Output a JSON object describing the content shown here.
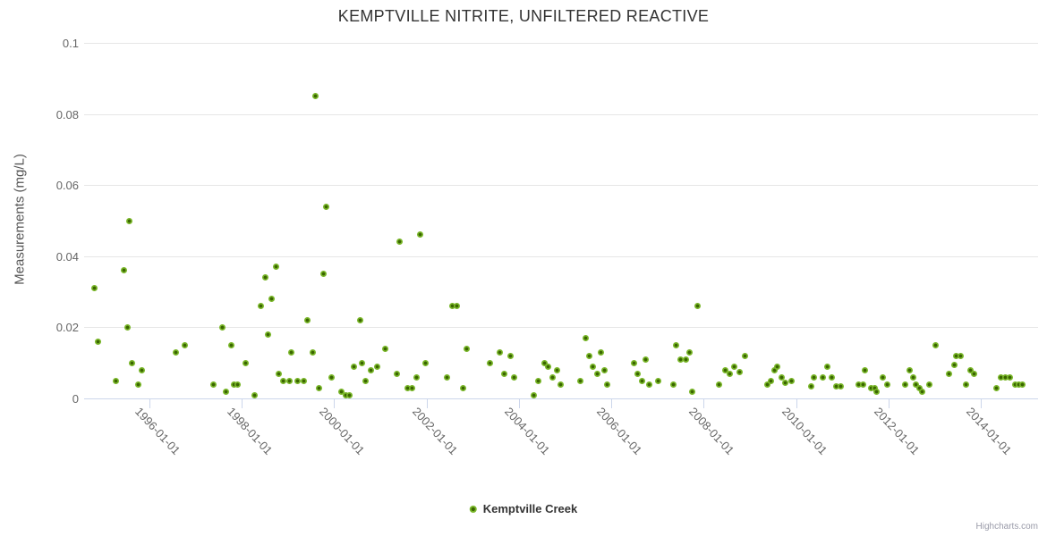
{
  "title": "KEMPTVILLE NITRITE, UNFILTERED REACTIVE",
  "legend": {
    "series_label": "Kemptville Creek"
  },
  "credits": "Highcharts.com",
  "colors": {
    "point_outer": "#79b629",
    "point_inner": "#3a6500",
    "grid": "#e6e6e6",
    "axis_line": "#ccd6eb",
    "title_text": "#333333",
    "axis_label_text": "#666666",
    "credits_text": "#999aa8"
  },
  "chart_data": {
    "type": "scatter",
    "title": "KEMPTVILLE NITRITE, UNFILTERED REACTIVE",
    "xlabel": "",
    "ylabel": "Measurements (mg/L)",
    "grid": true,
    "legend_position": "bottom-center",
    "x_range": [
      1994.585,
      2015.24
    ],
    "y_range": [
      0,
      0.1
    ],
    "y_ticks": [
      0,
      0.02,
      0.04,
      0.06,
      0.08,
      0.1
    ],
    "x_ticks": [
      {
        "value": 1996,
        "label": "1996-01-01"
      },
      {
        "value": 1998,
        "label": "1998-01-01"
      },
      {
        "value": 2000,
        "label": "2000-01-01"
      },
      {
        "value": 2002,
        "label": "2002-01-01"
      },
      {
        "value": 2004,
        "label": "2004-01-01"
      },
      {
        "value": 2006,
        "label": "2006-01-01"
      },
      {
        "value": 2008,
        "label": "2008-01-01"
      },
      {
        "value": 2010,
        "label": "2010-01-01"
      },
      {
        "value": 2012,
        "label": "2012-01-01"
      },
      {
        "value": 2014,
        "label": "2014-01-01"
      }
    ],
    "series": [
      {
        "name": "Kemptville Creek",
        "color": "#79b629",
        "points": [
          [
            1994.8,
            0.031
          ],
          [
            1994.88,
            0.016
          ],
          [
            1995.27,
            0.005
          ],
          [
            1995.44,
            0.036
          ],
          [
            1995.52,
            0.02
          ],
          [
            1995.56,
            0.05
          ],
          [
            1995.63,
            0.01
          ],
          [
            1995.75,
            0.004
          ],
          [
            1995.84,
            0.008
          ],
          [
            1996.58,
            0.013
          ],
          [
            1996.77,
            0.015
          ],
          [
            1997.39,
            0.004
          ],
          [
            1997.58,
            0.02
          ],
          [
            1997.66,
            0.002
          ],
          [
            1997.78,
            0.015
          ],
          [
            1997.83,
            0.004
          ],
          [
            1997.91,
            0.004
          ],
          [
            1998.08,
            0.01
          ],
          [
            1998.28,
            0.001
          ],
          [
            1998.41,
            0.026
          ],
          [
            1998.5,
            0.034
          ],
          [
            1998.57,
            0.018
          ],
          [
            1998.64,
            0.028
          ],
          [
            1998.74,
            0.037
          ],
          [
            1998.8,
            0.007
          ],
          [
            1998.9,
            0.005
          ],
          [
            1999.03,
            0.005
          ],
          [
            1999.07,
            0.013
          ],
          [
            1999.2,
            0.005
          ],
          [
            1999.34,
            0.005
          ],
          [
            1999.42,
            0.022
          ],
          [
            1999.53,
            0.013
          ],
          [
            1999.59,
            0.085
          ],
          [
            1999.67,
            0.003
          ],
          [
            1999.76,
            0.035
          ],
          [
            1999.82,
            0.054
          ],
          [
            1999.94,
            0.006
          ],
          [
            2000.15,
            0.002
          ],
          [
            2000.25,
            0.001
          ],
          [
            2000.33,
            0.001
          ],
          [
            2000.42,
            0.009
          ],
          [
            2000.56,
            0.022
          ],
          [
            2000.6,
            0.01
          ],
          [
            2000.67,
            0.005
          ],
          [
            2000.79,
            0.008
          ],
          [
            2000.94,
            0.009
          ],
          [
            2001.1,
            0.014
          ],
          [
            2001.35,
            0.007
          ],
          [
            2001.42,
            0.044
          ],
          [
            2001.58,
            0.003
          ],
          [
            2001.68,
            0.003
          ],
          [
            2001.79,
            0.006
          ],
          [
            2001.87,
            0.046
          ],
          [
            2001.97,
            0.01
          ],
          [
            2002.45,
            0.006
          ],
          [
            2002.56,
            0.026
          ],
          [
            2002.66,
            0.026
          ],
          [
            2002.8,
            0.003
          ],
          [
            2002.87,
            0.014
          ],
          [
            2003.37,
            0.01
          ],
          [
            2003.59,
            0.013
          ],
          [
            2003.68,
            0.007
          ],
          [
            2003.82,
            0.012
          ],
          [
            2003.9,
            0.006
          ],
          [
            2004.32,
            0.001
          ],
          [
            2004.42,
            0.005
          ],
          [
            2004.55,
            0.01
          ],
          [
            2004.63,
            0.009
          ],
          [
            2004.73,
            0.006
          ],
          [
            2004.82,
            0.008
          ],
          [
            2004.9,
            0.004
          ],
          [
            2005.32,
            0.005
          ],
          [
            2005.44,
            0.017
          ],
          [
            2005.52,
            0.012
          ],
          [
            2005.61,
            0.009
          ],
          [
            2005.69,
            0.007
          ],
          [
            2005.77,
            0.013
          ],
          [
            2005.85,
            0.008
          ],
          [
            2005.92,
            0.004
          ],
          [
            2006.5,
            0.01
          ],
          [
            2006.56,
            0.007
          ],
          [
            2006.66,
            0.005
          ],
          [
            2006.75,
            0.011
          ],
          [
            2006.83,
            0.004
          ],
          [
            2007.02,
            0.005
          ],
          [
            2007.35,
            0.004
          ],
          [
            2007.41,
            0.015
          ],
          [
            2007.5,
            0.011
          ],
          [
            2007.62,
            0.011
          ],
          [
            2007.7,
            0.013
          ],
          [
            2007.76,
            0.002
          ],
          [
            2007.87,
            0.026
          ],
          [
            2008.34,
            0.004
          ],
          [
            2008.47,
            0.008
          ],
          [
            2008.57,
            0.007
          ],
          [
            2008.66,
            0.009
          ],
          [
            2008.78,
            0.0075
          ],
          [
            2008.9,
            0.012
          ],
          [
            2009.38,
            0.004
          ],
          [
            2009.45,
            0.005
          ],
          [
            2009.53,
            0.008
          ],
          [
            2009.6,
            0.009
          ],
          [
            2009.69,
            0.006
          ],
          [
            2009.77,
            0.0045
          ],
          [
            2009.9,
            0.005
          ],
          [
            2010.33,
            0.0035
          ],
          [
            2010.38,
            0.006
          ],
          [
            2010.58,
            0.006
          ],
          [
            2010.67,
            0.009
          ],
          [
            2010.77,
            0.006
          ],
          [
            2010.88,
            0.0035
          ],
          [
            2010.96,
            0.0035
          ],
          [
            2011.35,
            0.004
          ],
          [
            2011.46,
            0.004
          ],
          [
            2011.5,
            0.008
          ],
          [
            2011.62,
            0.003
          ],
          [
            2011.71,
            0.003
          ],
          [
            2011.75,
            0.002
          ],
          [
            2011.87,
            0.006
          ],
          [
            2011.97,
            0.004
          ],
          [
            2012.37,
            0.004
          ],
          [
            2012.45,
            0.008
          ],
          [
            2012.54,
            0.006
          ],
          [
            2012.6,
            0.004
          ],
          [
            2012.67,
            0.003
          ],
          [
            2012.74,
            0.002
          ],
          [
            2012.88,
            0.004
          ],
          [
            2013.02,
            0.015
          ],
          [
            2013.32,
            0.007
          ],
          [
            2013.43,
            0.0095
          ],
          [
            2013.47,
            0.012
          ],
          [
            2013.57,
            0.012
          ],
          [
            2013.68,
            0.004
          ],
          [
            2013.78,
            0.008
          ],
          [
            2013.86,
            0.007
          ],
          [
            2014.34,
            0.003
          ],
          [
            2014.44,
            0.006
          ],
          [
            2014.54,
            0.006
          ],
          [
            2014.63,
            0.006
          ],
          [
            2014.75,
            0.004
          ],
          [
            2014.83,
            0.004
          ],
          [
            2014.9,
            0.004
          ]
        ]
      }
    ]
  }
}
